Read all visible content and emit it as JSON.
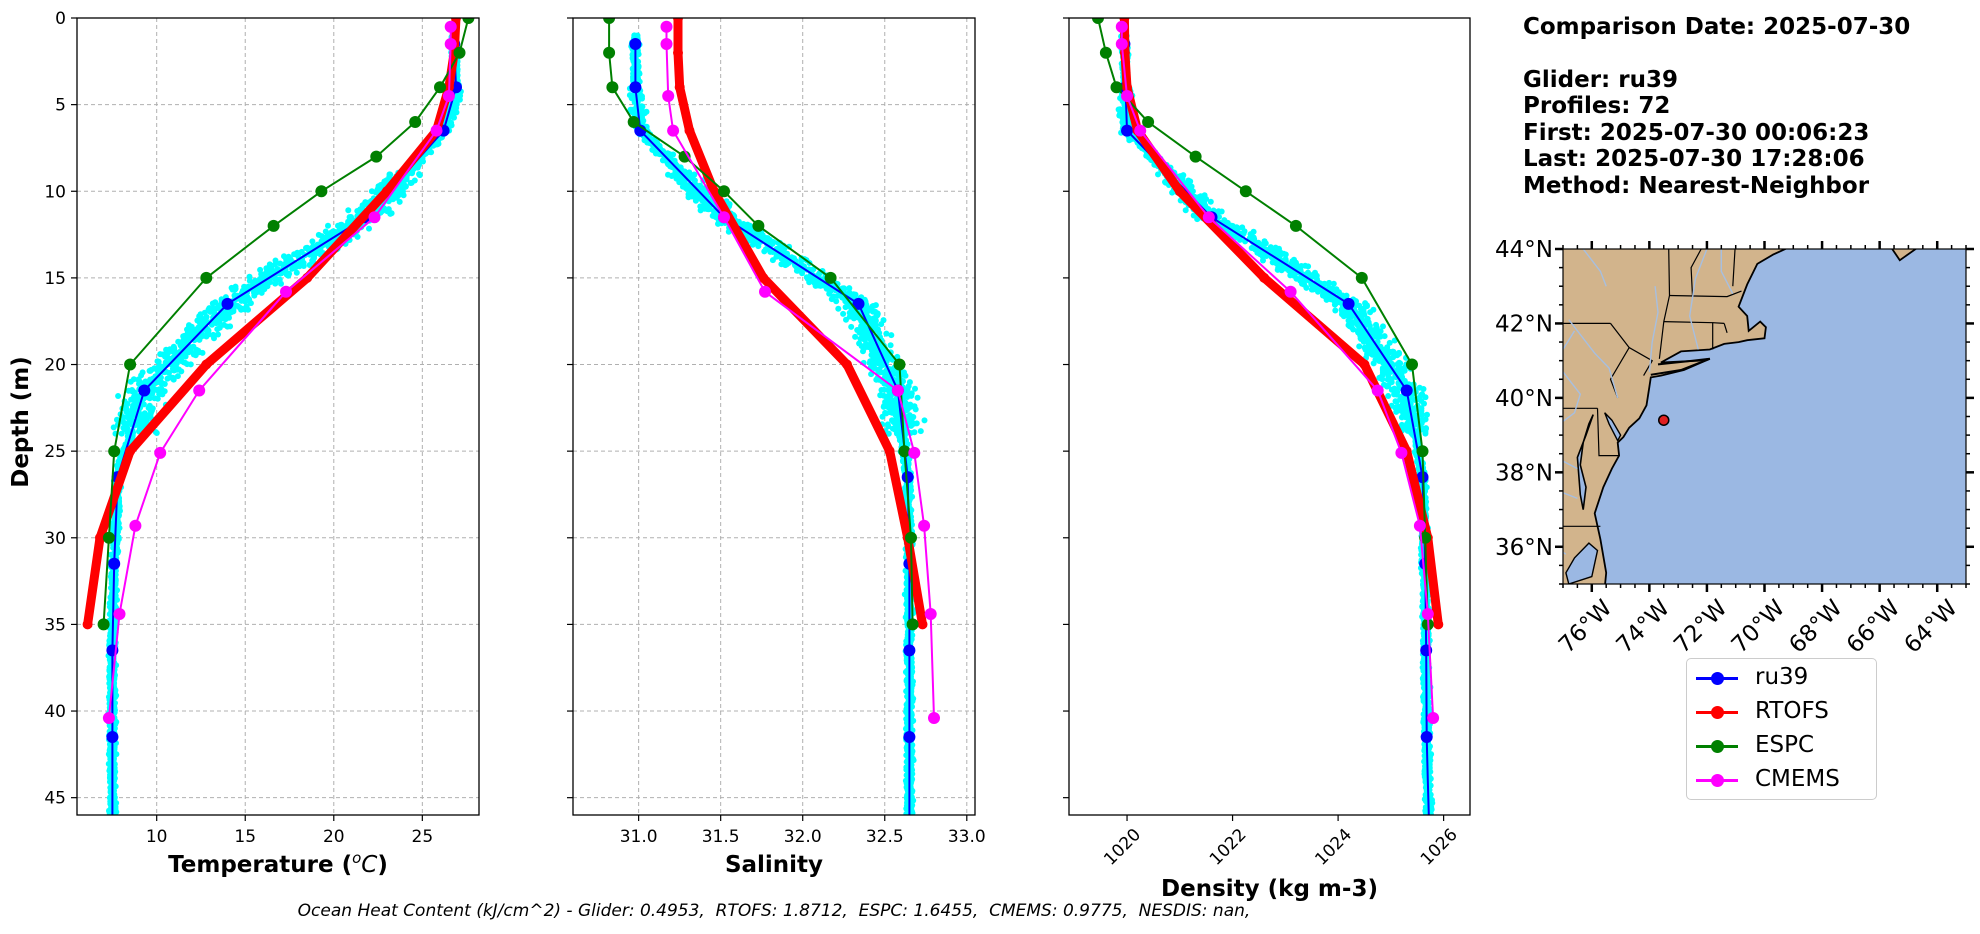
{
  "chart_data": [
    {
      "type": "line",
      "xlabel": "Temperature (°C)",
      "ylabel": "Depth (m)",
      "xlim": [
        5.5,
        28.2
      ],
      "ylim": [
        46,
        0
      ],
      "xticks": [
        "10",
        "15",
        "20",
        "25"
      ],
      "yticks": [
        "0",
        "5",
        "10",
        "15",
        "20",
        "25",
        "30",
        "35",
        "40",
        "45"
      ],
      "grid": true,
      "scatter_color": "#00ffff",
      "series": [
        {
          "name": "ru39",
          "color": "#0000ff",
          "width": 2,
          "x": [
            26.8,
            26.9,
            26.2,
            21.8,
            14.0,
            9.3,
            7.8,
            7.6,
            7.5,
            7.5,
            7.5,
            7.5
          ],
          "y": [
            1.5,
            4,
            6.5,
            11.5,
            16.5,
            21.5,
            26.5,
            31.5,
            36.5,
            41.5,
            44,
            46
          ]
        },
        {
          "name": "RTOFS",
          "color": "#ff0000",
          "width": 9,
          "x": [
            26.9,
            26.8,
            26.5,
            25.8,
            23.0,
            18.5,
            12.8,
            8.5,
            6.8,
            6.1
          ],
          "y": [
            0,
            2,
            4,
            6.5,
            10,
            15,
            20,
            25,
            30,
            35
          ]
        },
        {
          "name": "ESPC",
          "color": "#008000",
          "width": 2,
          "x": [
            27.6,
            27.1,
            26.0,
            24.6,
            22.4,
            19.3,
            16.6,
            12.8,
            8.5,
            7.6,
            7.3,
            7.0
          ],
          "y": [
            0,
            2,
            4,
            6,
            8,
            10,
            12,
            15,
            20,
            25,
            30,
            35
          ]
        },
        {
          "name": "CMEMS",
          "color": "#ff00ff",
          "width": 2,
          "x": [
            26.6,
            26.6,
            26.5,
            25.8,
            22.3,
            17.3,
            12.4,
            10.2,
            8.8,
            7.9,
            7.3
          ],
          "y": [
            0.5,
            1.5,
            4.5,
            6.5,
            11.5,
            15.8,
            21.5,
            25.1,
            29.3,
            34.4,
            40.4
          ]
        }
      ]
    },
    {
      "type": "line",
      "xlabel": "Salinity",
      "xlim": [
        30.6,
        33.05
      ],
      "ylim": [
        46,
        0
      ],
      "xticks": [
        "31.0",
        "31.5",
        "32.0",
        "32.5",
        "33.0"
      ],
      "grid": true,
      "scatter_color": "#00ffff",
      "series": [
        {
          "name": "ru39",
          "color": "#0000ff",
          "width": 2,
          "x": [
            30.98,
            30.98,
            31.01,
            31.52,
            32.34,
            32.58,
            32.64,
            32.65,
            32.65,
            32.65,
            32.65,
            32.65
          ],
          "y": [
            1.5,
            4,
            6.5,
            11.5,
            16.5,
            21.5,
            26.5,
            31.5,
            36.5,
            41.5,
            44,
            46
          ]
        },
        {
          "name": "RTOFS",
          "color": "#ff0000",
          "width": 9,
          "x": [
            31.24,
            31.24,
            31.25,
            31.31,
            31.46,
            31.76,
            32.27,
            32.53,
            32.64,
            32.73
          ],
          "y": [
            0,
            2,
            4,
            6.5,
            10,
            15,
            20,
            25,
            30,
            35
          ]
        },
        {
          "name": "ESPC",
          "color": "#008000",
          "width": 2,
          "x": [
            30.82,
            30.82,
            30.84,
            30.97,
            31.28,
            31.52,
            31.73,
            32.17,
            32.59,
            32.62,
            32.66,
            32.67
          ],
          "y": [
            0,
            2,
            4,
            6,
            8,
            10,
            12,
            15,
            20,
            25,
            30,
            35
          ]
        },
        {
          "name": "CMEMS",
          "color": "#ff00ff",
          "width": 2,
          "x": [
            31.17,
            31.17,
            31.18,
            31.21,
            31.52,
            31.77,
            32.58,
            32.68,
            32.74,
            32.78,
            32.8
          ],
          "y": [
            0.5,
            1.5,
            4.5,
            6.5,
            11.5,
            15.8,
            21.5,
            25.1,
            29.3,
            34.4,
            40.4
          ]
        }
      ]
    },
    {
      "type": "line",
      "xlabel": "Density (kg m-3)",
      "xlim": [
        1018.9,
        1026.5
      ],
      "ylim": [
        46,
        0
      ],
      "xticks": [
        "1020",
        "1022",
        "1024",
        "1026"
      ],
      "grid": false,
      "scatter_color": "#00ffff",
      "series": [
        {
          "name": "ru39",
          "color": "#0000ff",
          "width": 2,
          "x": [
            1019.95,
            1019.97,
            1020.0,
            1021.6,
            1024.2,
            1025.3,
            1025.6,
            1025.65,
            1025.67,
            1025.68,
            1025.7,
            1025.72
          ],
          "y": [
            1.5,
            4,
            6.5,
            11.5,
            16.5,
            21.5,
            26.5,
            31.5,
            36.5,
            41.5,
            44,
            46
          ]
        },
        {
          "name": "RTOFS",
          "color": "#ff0000",
          "width": 9,
          "x": [
            1019.95,
            1019.96,
            1020.0,
            1020.2,
            1021.0,
            1022.6,
            1024.5,
            1025.3,
            1025.7,
            1025.9
          ],
          "y": [
            0,
            2,
            4,
            6.5,
            10,
            15,
            20,
            25,
            30,
            35
          ]
        },
        {
          "name": "ESPC",
          "color": "#008000",
          "width": 2,
          "x": [
            1019.45,
            1019.6,
            1019.8,
            1020.4,
            1021.3,
            1022.25,
            1023.2,
            1024.45,
            1025.4,
            1025.6,
            1025.65,
            1025.7
          ],
          "y": [
            0,
            2,
            4,
            6,
            8,
            10,
            12,
            15,
            20,
            25,
            30,
            35
          ]
        },
        {
          "name": "CMEMS",
          "color": "#ff00ff",
          "width": 2,
          "x": [
            1019.9,
            1019.9,
            1020.0,
            1020.25,
            1021.55,
            1023.1,
            1024.75,
            1025.2,
            1025.55,
            1025.7,
            1025.8
          ],
          "y": [
            0.5,
            1.5,
            4.5,
            6.5,
            11.5,
            15.8,
            21.5,
            25.1,
            29.3,
            34.4,
            40.4
          ]
        }
      ]
    }
  ],
  "info": {
    "date_line": "Comparison Date: 2025-07-30",
    "glider_line": "Glider: ru39",
    "profiles_line": "Profiles: 72",
    "first_line": "First: 2025-07-30 00:06:23",
    "last_line": "Last: 2025-07-30 17:28:06",
    "method_line": "Method: Nearest-Neighbor"
  },
  "map": {
    "lon_labels": [
      "76°W",
      "74°W",
      "72°W",
      "70°W",
      "68°W",
      "66°W",
      "64°W"
    ],
    "lat_labels": [
      "44°N",
      "42°N",
      "40°N",
      "38°N",
      "36°N"
    ],
    "lon_range": [
      -77.0,
      -63.0
    ],
    "lat_range": [
      35.0,
      44.0
    ],
    "ocean_color": "#9bb8e3",
    "land_color": "#d2b48c",
    "marker_color": "#e02020",
    "marker": {
      "lon": -73.5,
      "lat": 39.4
    }
  },
  "legend": {
    "items": [
      {
        "label": "ru39",
        "color": "#0000ff"
      },
      {
        "label": "RTOFS",
        "color": "#ff0000"
      },
      {
        "label": "ESPC",
        "color": "#008000"
      },
      {
        "label": "CMEMS",
        "color": "#ff00ff"
      }
    ]
  },
  "footer": "Ocean Heat Content (kJ/cm^2) - Glider: 0.4953,  RTOFS: 1.8712,  ESPC: 1.6455,  CMEMS: 0.9775,  NESDIS: nan,"
}
